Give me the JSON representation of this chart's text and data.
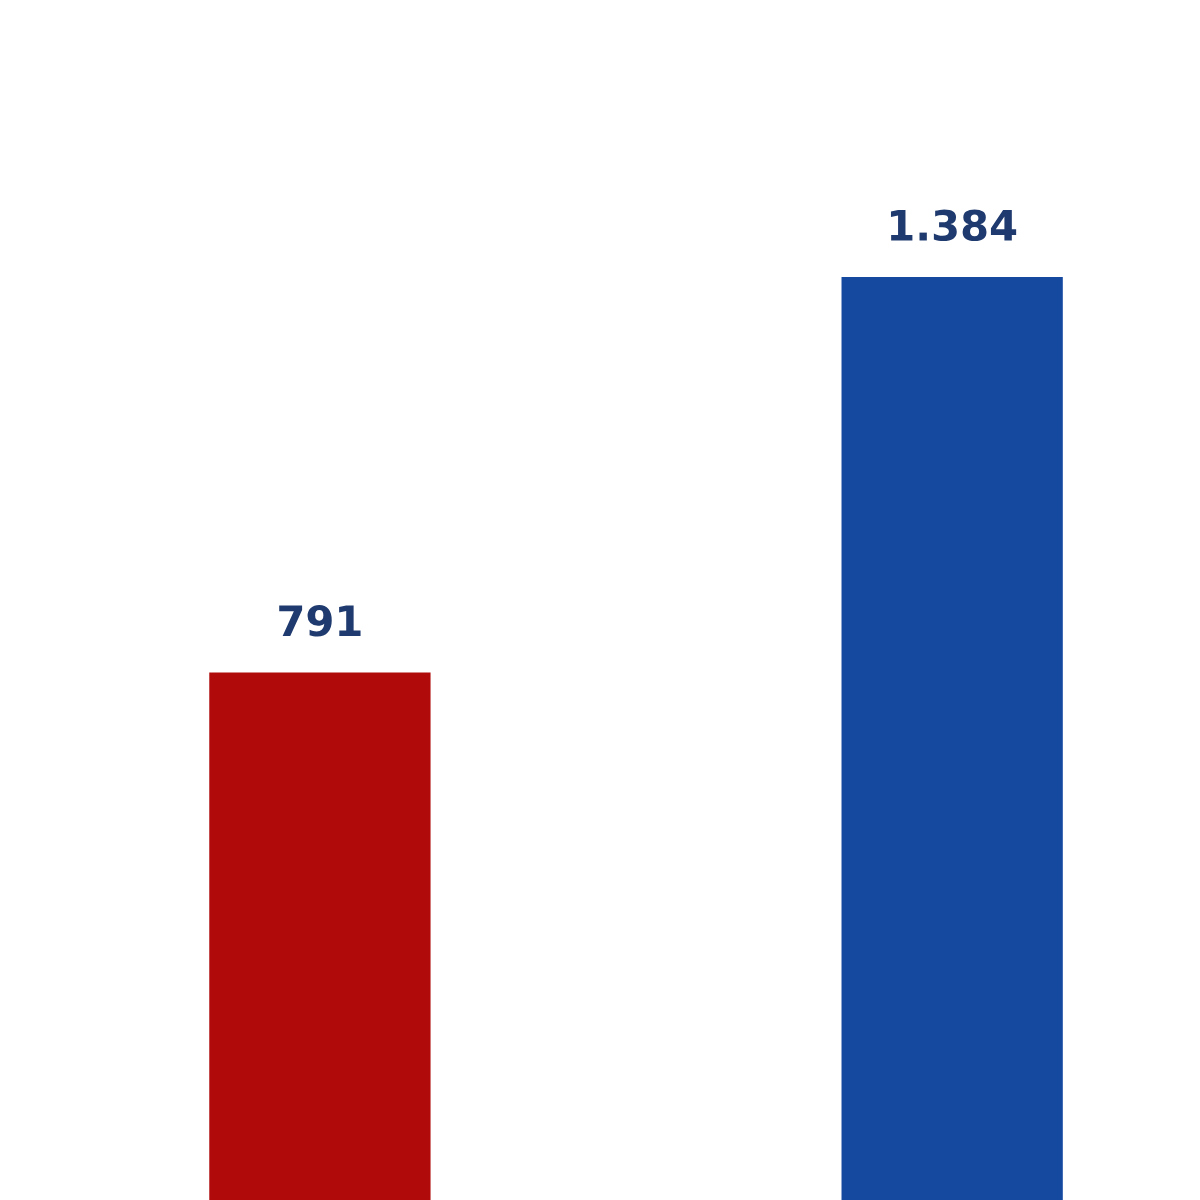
{
  "chart_data": {
    "type": "bar",
    "categories": [
      null,
      null
    ],
    "values": [
      791,
      1384
    ],
    "colors": [
      "#b00a0a",
      "#1549a0"
    ],
    "value_labels": [
      "791",
      "1.384"
    ]
  }
}
